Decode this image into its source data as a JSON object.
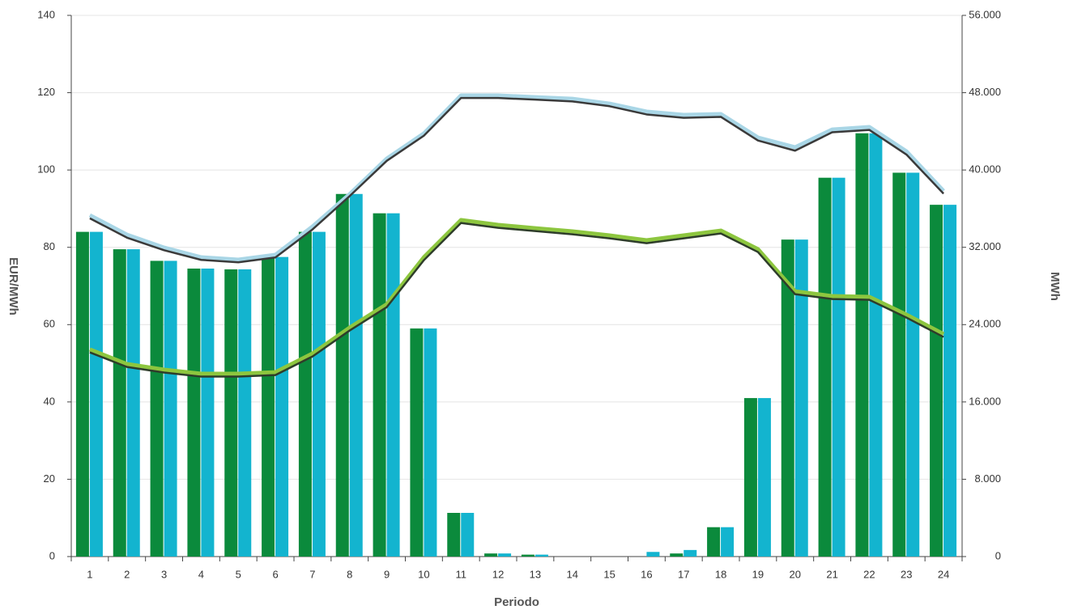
{
  "chart_data": {
    "type": "bar",
    "x_label": "Periodo",
    "y_label": "EUR/MWh",
    "y2_label": "MWh",
    "categories": [
      "1",
      "2",
      "3",
      "4",
      "5",
      "6",
      "7",
      "8",
      "9",
      "10",
      "11",
      "12",
      "13",
      "14",
      "15",
      "16",
      "17",
      "18",
      "19",
      "20",
      "21",
      "22",
      "23",
      "24"
    ],
    "series": [
      {
        "type": "bar",
        "color": "#0b8a3c",
        "values": [
          84,
          79.5,
          76.5,
          74.5,
          74.3,
          77.5,
          84,
          93.8,
          88.8,
          59,
          11.3,
          0.8,
          0.5,
          0,
          0,
          0,
          0.8,
          7.6,
          41,
          82,
          98,
          109.5,
          99.3,
          91
        ]
      },
      {
        "type": "bar",
        "color": "#13b4cf",
        "values": [
          84,
          79.5,
          76.5,
          74.5,
          74.3,
          77.5,
          84,
          93.8,
          88.8,
          59,
          11.3,
          0.8,
          0.5,
          0,
          0,
          1.2,
          1.7,
          7.6,
          41,
          82,
          98,
          109.5,
          99.3,
          91
        ]
      },
      {
        "type": "line",
        "axis": "y2",
        "color": "#a9d6e6",
        "values": [
          35320,
          33310,
          31970,
          30970,
          30720,
          31220,
          34150,
          37500,
          41180,
          43780,
          47710,
          47710,
          47540,
          47370,
          46870,
          46040,
          45700,
          45790,
          43360,
          42350,
          44190,
          44450,
          41930,
          37830
        ]
      },
      {
        "type": "line",
        "axis": "y2",
        "color": "#3a3a3a",
        "values": [
          35000,
          33000,
          31700,
          30700,
          30450,
          30950,
          33850,
          37300,
          40950,
          43550,
          47450,
          47450,
          47280,
          47100,
          46600,
          45750,
          45400,
          45500,
          43050,
          42000,
          43900,
          44150,
          41600,
          37550
        ]
      },
      {
        "type": "line",
        "axis": "y2",
        "color": "#8dc63f",
        "values": [
          21430,
          19920,
          19340,
          18920,
          18920,
          19080,
          21010,
          23690,
          26110,
          30970,
          34820,
          34320,
          33980,
          33650,
          33230,
          32730,
          33230,
          33730,
          31810,
          27450,
          26950,
          26870,
          25030,
          23020
        ]
      },
      {
        "type": "line",
        "axis": "y2",
        "color": "#2e3d2a",
        "values": [
          21130,
          19620,
          19040,
          18620,
          18620,
          18780,
          20710,
          23390,
          25810,
          30670,
          34520,
          34020,
          33680,
          33350,
          32930,
          32430,
          32930,
          33430,
          31510,
          27150,
          26650,
          26570,
          24730,
          22720
        ]
      }
    ],
    "ylim": [
      0,
      140
    ],
    "yticks": [
      0,
      20,
      40,
      60,
      80,
      100,
      120,
      140
    ],
    "y2lim": [
      0,
      56000
    ],
    "y2ticks": [
      0,
      {
        "value": 8000,
        "label": "8.000"
      },
      {
        "value": 16000,
        "label": "16.000"
      },
      {
        "value": 24000,
        "label": "24.000"
      },
      {
        "value": 32000,
        "label": "32.000"
      },
      {
        "value": 40000,
        "label": "40.000"
      },
      {
        "value": 48000,
        "label": "48.000"
      },
      {
        "value": 56000,
        "label": "56.000"
      }
    ],
    "grid": true
  }
}
